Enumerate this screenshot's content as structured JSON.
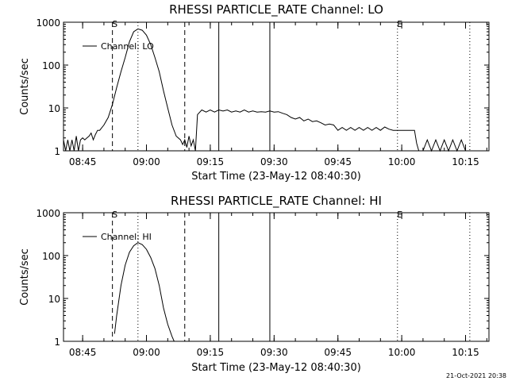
{
  "chart_data": [
    {
      "type": "line",
      "title": "RHESSI PARTICLE_RATE Channel: LO",
      "xlabel": "Start Time (23-May-12 08:40:30)",
      "ylabel": "Counts/sec",
      "yscale": "log",
      "ylim": [
        1,
        1000
      ],
      "xlim": [
        "08:40:30",
        "10:20:30"
      ],
      "y_ticks": [
        "1",
        "10",
        "100",
        "1000"
      ],
      "x_ticks": [
        "08:45",
        "09:00",
        "09:15",
        "09:30",
        "09:45",
        "10:00",
        "10:15"
      ],
      "legend": {
        "label": "Channel: LO",
        "position": "top-left"
      },
      "markers": {
        "S": "08:52:00",
        "E": "09:59:00"
      },
      "dashed_lines": [
        "08:52:00",
        "09:09:00"
      ],
      "dotted_lines": [
        "08:58:00",
        "09:59:00",
        "10:16:00"
      ],
      "solid_lines": [
        "09:17:00",
        "09:29:00"
      ],
      "series": [
        {
          "name": "Channel: LO",
          "x": [
            "08:40:30",
            "08:41:00",
            "08:41:30",
            "08:42:00",
            "08:42:30",
            "08:43:00",
            "08:43:30",
            "08:44:00",
            "08:44:30",
            "08:45:00",
            "08:45:30",
            "08:46:00",
            "08:46:30",
            "08:47:00",
            "08:47:30",
            "08:48:00",
            "08:48:30",
            "08:49:00",
            "08:50:00",
            "08:51:00",
            "08:52:00",
            "08:53:00",
            "08:54:00",
            "08:55:00",
            "08:56:00",
            "08:57:00",
            "08:58:00",
            "08:59:00",
            "09:00:00",
            "09:01:00",
            "09:02:00",
            "09:03:00",
            "09:04:00",
            "09:05:00",
            "09:06:00",
            "09:07:00",
            "09:08:00",
            "09:08:30",
            "09:09:00",
            "09:09:30",
            "09:10:00",
            "09:10:30",
            "09:11:00",
            "09:11:30",
            "09:12:00",
            "09:13:00",
            "09:14:00",
            "09:15:00",
            "09:16:00",
            "09:17:00",
            "09:18:00",
            "09:19:00",
            "09:20:00",
            "09:21:00",
            "09:22:00",
            "09:23:00",
            "09:24:00",
            "09:25:00",
            "09:26:00",
            "09:27:00",
            "09:28:00",
            "09:29:00",
            "09:30:00",
            "09:31:00",
            "09:32:00",
            "09:33:00",
            "09:34:00",
            "09:35:00",
            "09:36:00",
            "09:37:00",
            "09:38:00",
            "09:39:00",
            "09:40:00",
            "09:41:00",
            "09:42:00",
            "09:43:00",
            "09:44:00",
            "09:45:00",
            "09:46:00",
            "09:47:00",
            "09:48:00",
            "09:49:00",
            "09:50:00",
            "09:51:00",
            "09:52:00",
            "09:53:00",
            "09:54:00",
            "09:55:00",
            "09:56:00",
            "09:57:00",
            "09:58:00",
            "09:59:00",
            "10:00:00",
            "10:01:00",
            "10:02:00",
            "10:03:00",
            "10:03:30",
            "10:04:00",
            "10:05:00",
            "10:06:00",
            "10:07:00",
            "10:08:00",
            "10:09:00",
            "10:10:00",
            "10:11:00",
            "10:12:00",
            "10:13:00",
            "10:14:00",
            "10:15:00",
            "10:16:00"
          ],
          "y": [
            1.8,
            1,
            1.8,
            1,
            1.8,
            1,
            2.2,
            1,
            1.8,
            2,
            1.8,
            2,
            2.2,
            2.6,
            1.8,
            2.4,
            3,
            3,
            4,
            6,
            12,
            30,
            70,
            150,
            350,
            600,
            700,
            650,
            500,
            300,
            150,
            70,
            25,
            10,
            4,
            2.2,
            1.8,
            1.4,
            1.8,
            1.2,
            2.2,
            1.3,
            1.8,
            1,
            7,
            9,
            8,
            9,
            8,
            9,
            8.5,
            9,
            8,
            8.5,
            8,
            9,
            8,
            8.5,
            8,
            8.2,
            8,
            8.5,
            8,
            8.2,
            7.5,
            7,
            6,
            5.5,
            6,
            5,
            5.5,
            4.8,
            5,
            4.5,
            4,
            4.2,
            4,
            3,
            3.5,
            3,
            3.5,
            3,
            3.5,
            3,
            3.5,
            3,
            3.5,
            3,
            3.6,
            3.2,
            3,
            3,
            3,
            3,
            3,
            3,
            1.5,
            1,
            1,
            1.8,
            1,
            1.8,
            1,
            1.8,
            1,
            1.8,
            1,
            1.8,
            1,
            1
          ]
        }
      ]
    },
    {
      "type": "line",
      "title": "RHESSI PARTICLE_RATE Channel: HI",
      "xlabel": "Start Time (23-May-12 08:40:30)",
      "ylabel": "Counts/sec",
      "yscale": "log",
      "ylim": [
        1,
        1000
      ],
      "xlim": [
        "08:40:30",
        "10:20:30"
      ],
      "y_ticks": [
        "1",
        "10",
        "100",
        "1000"
      ],
      "x_ticks": [
        "08:45",
        "09:00",
        "09:15",
        "09:30",
        "09:45",
        "10:00",
        "10:15"
      ],
      "legend": {
        "label": "Channel: HI",
        "position": "top-left"
      },
      "markers": {
        "S": "08:52:00",
        "E": "09:59:00"
      },
      "dashed_lines": [
        "08:52:00",
        "09:09:00"
      ],
      "dotted_lines": [
        "08:58:00",
        "09:59:00",
        "10:16:00"
      ],
      "solid_lines": [
        "09:17:00",
        "09:29:00"
      ],
      "series": [
        {
          "name": "Channel: HI",
          "x": [
            "08:52:30",
            "08:53:00",
            "08:54:00",
            "08:55:00",
            "08:56:00",
            "08:57:00",
            "08:58:00",
            "08:59:00",
            "09:00:00",
            "09:01:00",
            "09:02:00",
            "09:03:00",
            "09:04:00",
            "09:05:00",
            "09:06:00",
            "09:06:30"
          ],
          "y": [
            1.5,
            4,
            20,
            60,
            120,
            170,
            200,
            180,
            140,
            90,
            50,
            20,
            6,
            2.5,
            1.3,
            1
          ]
        }
      ]
    }
  ],
  "timestamp": "21-Oct-2021 20:38",
  "colors": {
    "background": "#ffffff",
    "foreground": "#000000"
  }
}
